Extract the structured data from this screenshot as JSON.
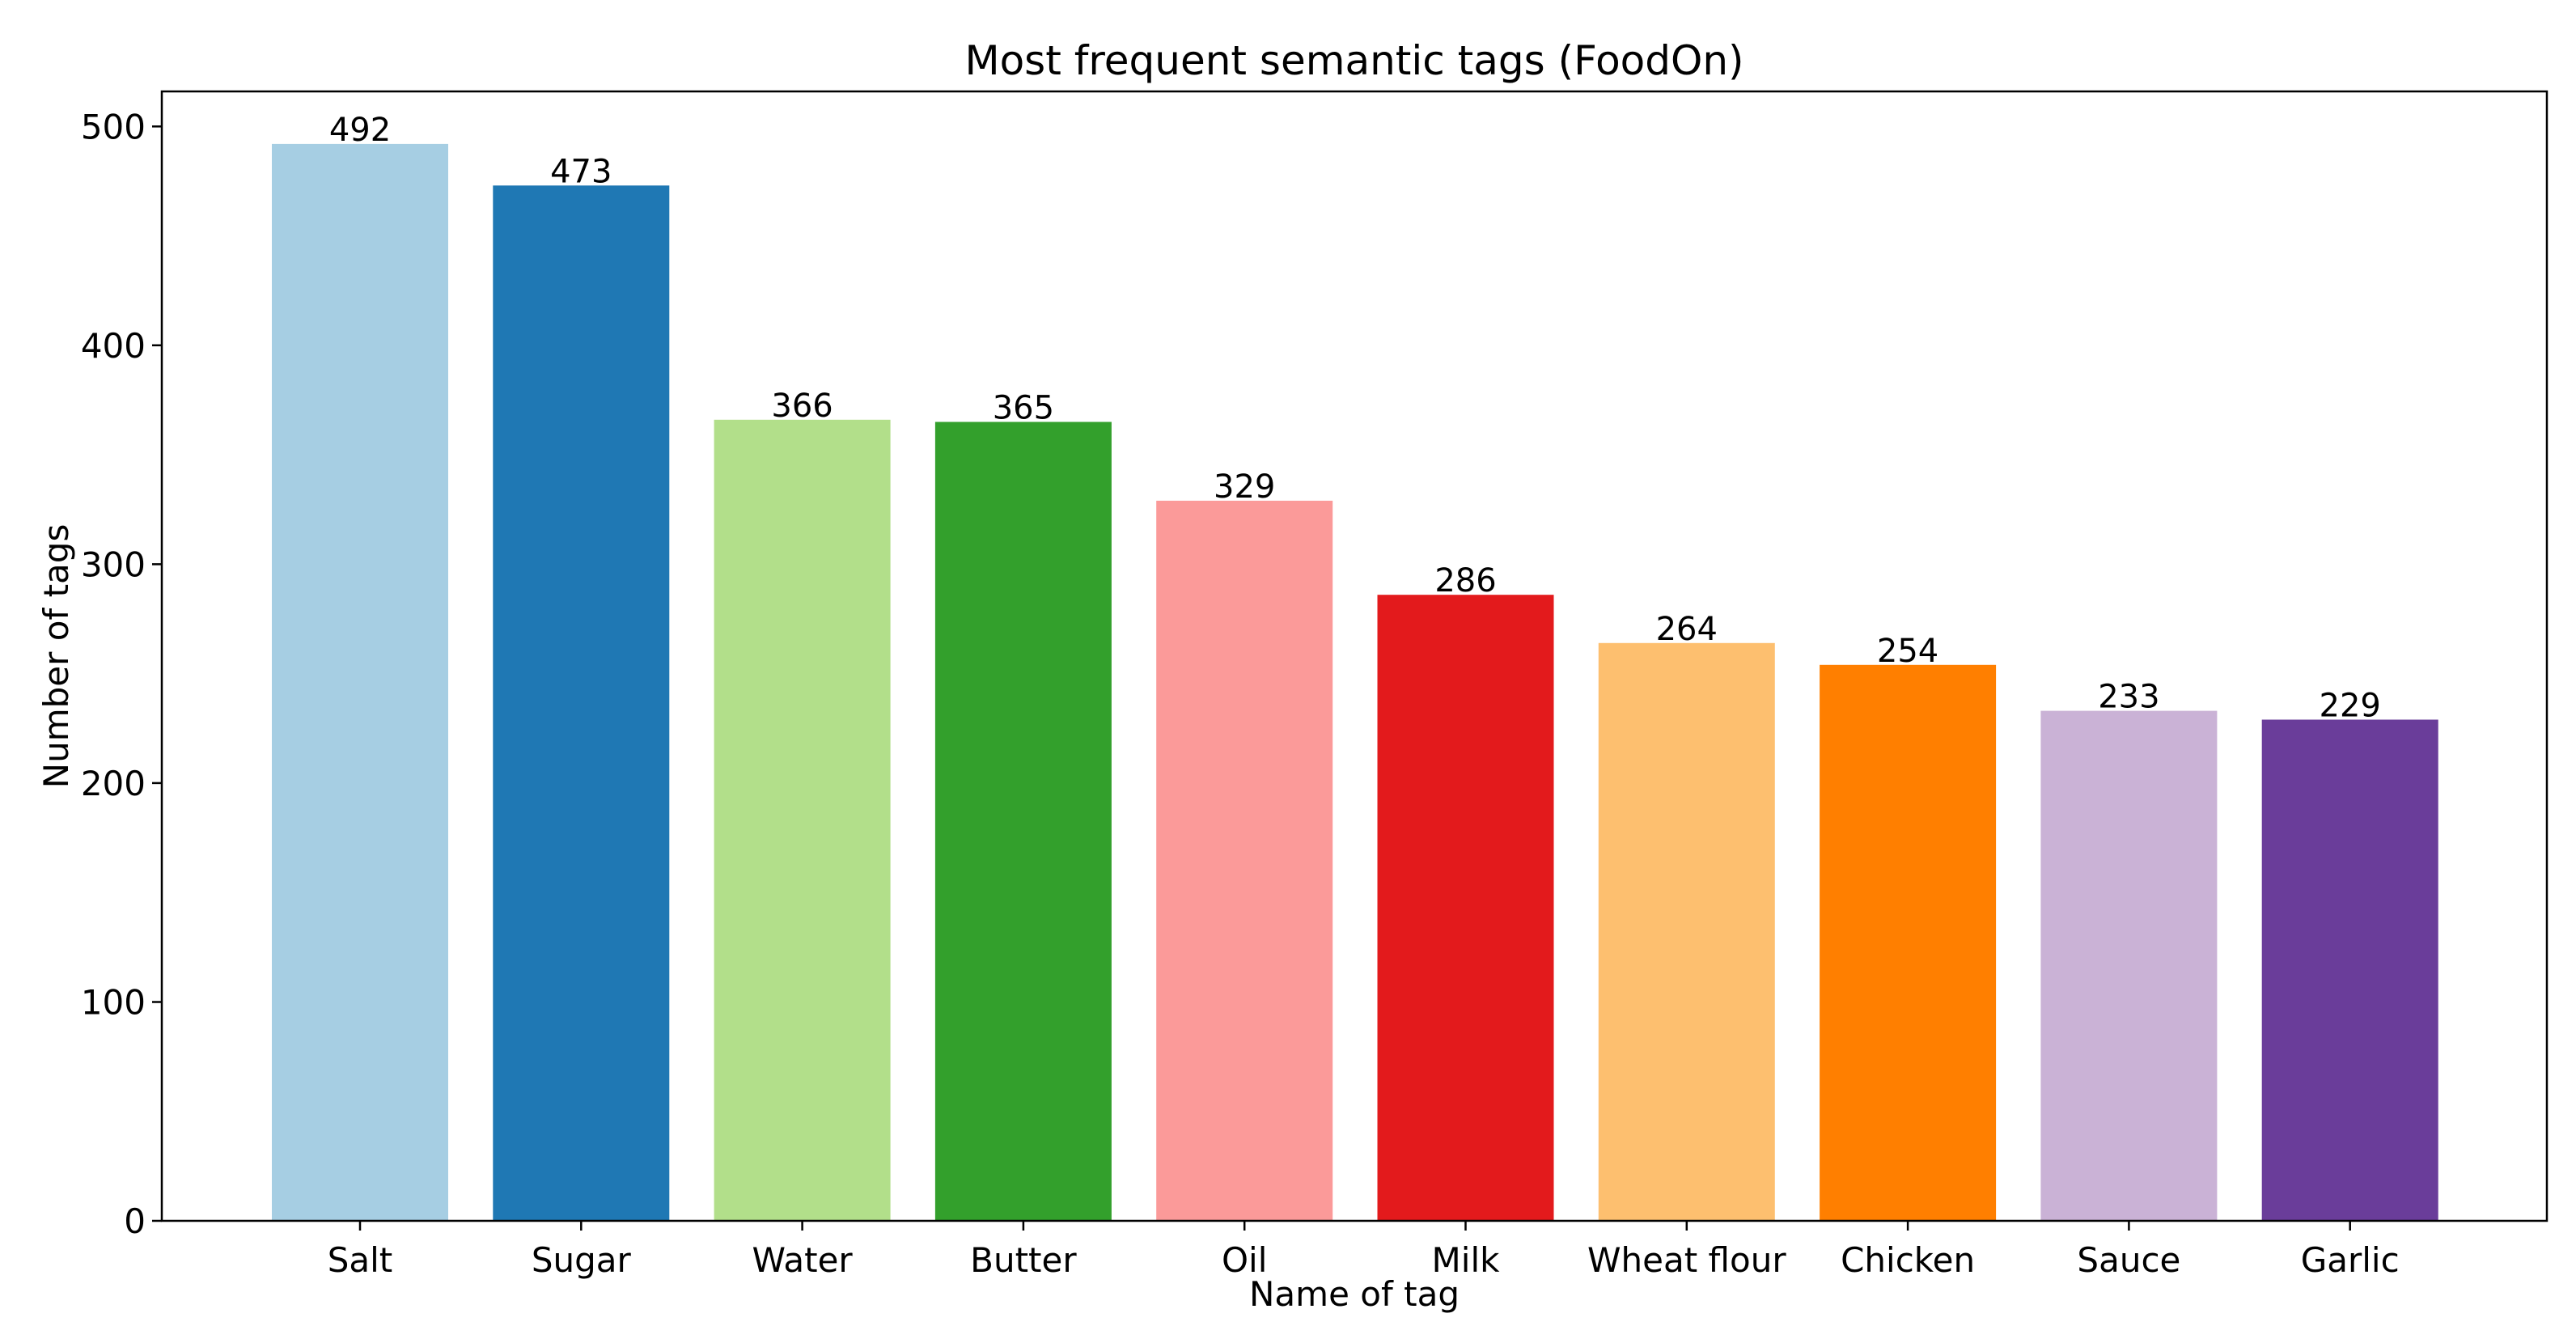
{
  "chart_data": {
    "type": "bar",
    "title": "Most frequent semantic tags (FoodOn)",
    "xlabel": "Name of tag",
    "ylabel": "Number of tags",
    "categories": [
      "Salt",
      "Sugar",
      "Water",
      "Butter",
      "Oil",
      "Milk",
      "Wheat flour",
      "Chicken",
      "Sauce",
      "Garlic"
    ],
    "values": [
      492,
      473,
      366,
      365,
      329,
      286,
      264,
      254,
      233,
      229
    ],
    "data_labels": [
      "492",
      "473",
      "366",
      "365",
      "329",
      "286",
      "264",
      "254",
      "233",
      "229"
    ],
    "colors": [
      "#a6cee3",
      "#1f78b4",
      "#b2df8a",
      "#33a02c",
      "#fb9a99",
      "#e31a1c",
      "#fdbf6f",
      "#ff7f00",
      "#cab2d6",
      "#6a3d9a"
    ],
    "ylim": [
      0,
      516
    ],
    "yticks": [
      0,
      100,
      200,
      300,
      400,
      500
    ],
    "ytick_labels": [
      "0",
      "100",
      "200",
      "300",
      "400",
      "500"
    ],
    "grid": false,
    "legend": "none"
  }
}
